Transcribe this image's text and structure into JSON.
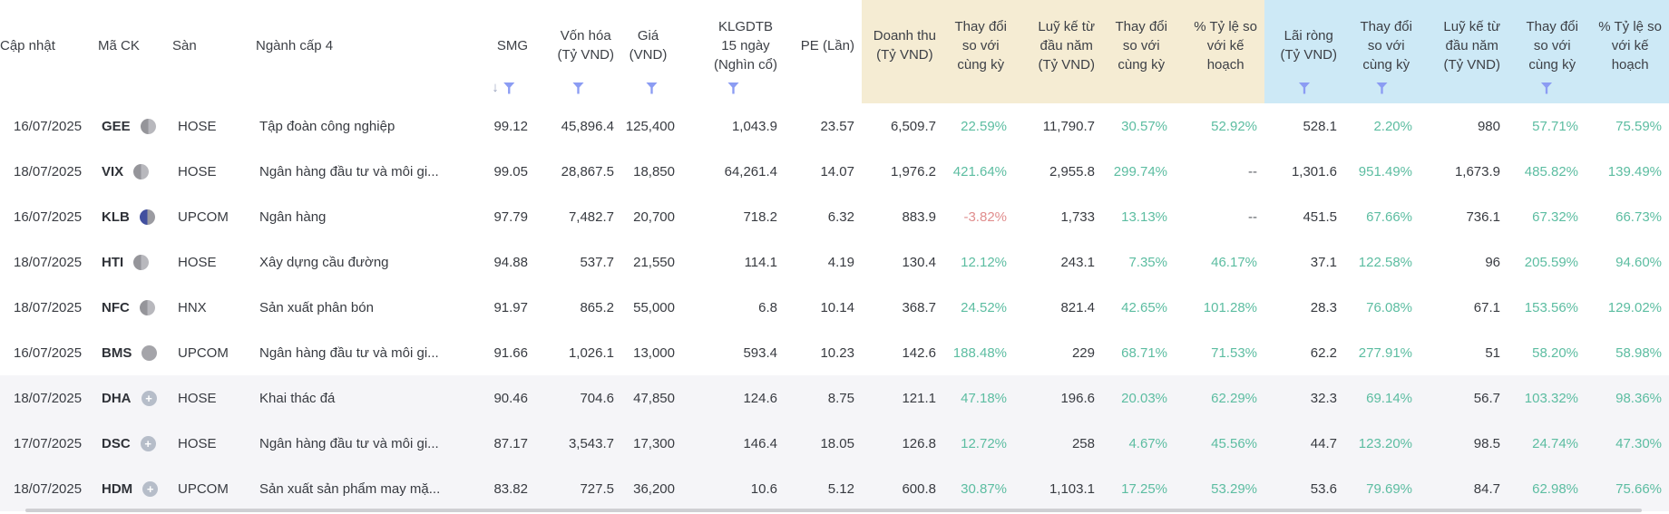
{
  "table": {
    "columns": [
      {
        "key": "cap-nhat",
        "label": "Cập nhật",
        "group": "none",
        "align": "left",
        "sort": false,
        "filter": false,
        "type": "text"
      },
      {
        "key": "ma-ck",
        "label": "Mã CK",
        "group": "none",
        "align": "left",
        "sort": false,
        "filter": false,
        "type": "code"
      },
      {
        "key": "san",
        "label": "Sàn",
        "group": "none",
        "align": "left",
        "sort": false,
        "filter": false,
        "type": "text"
      },
      {
        "key": "nganh-cap-4",
        "label": "Ngành cấp 4",
        "group": "none",
        "align": "left",
        "sort": false,
        "filter": false,
        "type": "text"
      },
      {
        "key": "smg",
        "label": "SMG",
        "group": "none",
        "align": "right",
        "sort": true,
        "filter": true,
        "type": "num"
      },
      {
        "key": "von-hoa",
        "label": "Vốn hóa\n(Tỷ VND)",
        "group": "none",
        "align": "right",
        "sort": false,
        "filter": true,
        "type": "num"
      },
      {
        "key": "gia",
        "label": "Giá (VND)",
        "group": "none",
        "align": "right",
        "sort": false,
        "filter": true,
        "type": "num"
      },
      {
        "key": "klgdtb-15-ngay",
        "label": "KLGDTB\n15 ngày\n(Nghìn cổ)",
        "group": "none",
        "align": "right",
        "sort": false,
        "filter": true,
        "type": "num"
      },
      {
        "key": "pe",
        "label": "PE (Lần)",
        "group": "none",
        "align": "right",
        "sort": false,
        "filter": false,
        "type": "num"
      },
      {
        "key": "doanh-thu",
        "label": "Doanh thu\n(Tỷ VND)",
        "group": "revenue",
        "align": "right",
        "sort": false,
        "filter": false,
        "type": "num"
      },
      {
        "key": "doanh-thu-thay-doi",
        "label": "Thay đổi\nso với\ncùng kỳ",
        "group": "revenue",
        "align": "right",
        "sort": false,
        "filter": false,
        "type": "pct"
      },
      {
        "key": "doanh-thu-luy-ke",
        "label": "Luỹ kế từ\nđầu năm\n(Tỷ VND)",
        "group": "revenue",
        "align": "right",
        "sort": false,
        "filter": false,
        "type": "num"
      },
      {
        "key": "luy-ke-thay-doi",
        "label": "Thay đổi\nso với\ncùng kỳ",
        "group": "revenue",
        "align": "right",
        "sort": false,
        "filter": false,
        "type": "pct"
      },
      {
        "key": "ty-le-ke-hoach",
        "label": "% Tỷ lệ so\nvới kế\nhoạch",
        "group": "revenue",
        "align": "right",
        "sort": false,
        "filter": false,
        "type": "pct"
      },
      {
        "key": "lai-rong",
        "label": "Lãi ròng\n(Tỷ VND)",
        "group": "profit",
        "align": "right",
        "sort": false,
        "filter": true,
        "type": "num"
      },
      {
        "key": "lai-rong-thay-doi",
        "label": "Thay đổi\nso với\ncùng kỳ",
        "group": "profit",
        "align": "right",
        "sort": false,
        "filter": true,
        "type": "pct"
      },
      {
        "key": "lai-rong-luy-ke",
        "label": "Luỹ kế từ\nđầu năm\n(Tỷ VND)",
        "group": "profit",
        "align": "right",
        "sort": false,
        "filter": false,
        "type": "num"
      },
      {
        "key": "lai-rong-luy-ke-thay-doi",
        "label": "Thay đổi\nso với\ncùng kỳ",
        "group": "profit",
        "align": "right",
        "sort": false,
        "filter": true,
        "type": "pct"
      },
      {
        "key": "lai-rong-ty-le-ke-hoach",
        "label": "% Tỷ lệ so\nvới kế\nhoạch",
        "group": "profit",
        "align": "right",
        "sort": false,
        "filter": false,
        "type": "pct"
      }
    ],
    "rows": [
      {
        "icon": "half-gray",
        "highlight": false,
        "cells": [
          "16/07/2025",
          "GEE",
          "HOSE",
          "Tập đoàn công nghiệp",
          "99.12",
          "45,896.4",
          "125,400",
          "1,043.9",
          "23.57",
          "6,509.7",
          "22.59%",
          "11,790.7",
          "30.57%",
          "52.92%",
          "528.1",
          "2.20%",
          "980",
          "57.71%",
          "75.59%"
        ]
      },
      {
        "icon": "half-gray",
        "highlight": false,
        "cells": [
          "18/07/2025",
          "VIX",
          "HOSE",
          "Ngân hàng đầu tư và môi gi...",
          "99.05",
          "28,867.5",
          "18,850",
          "64,261.4",
          "14.07",
          "1,976.2",
          "421.64%",
          "2,955.8",
          "299.74%",
          "--",
          "1,301.6",
          "951.49%",
          "1,673.9",
          "485.82%",
          "139.49%"
        ]
      },
      {
        "icon": "half-blue",
        "highlight": false,
        "cells": [
          "16/07/2025",
          "KLB",
          "UPCOM",
          "Ngân hàng",
          "97.79",
          "7,482.7",
          "20,700",
          "718.2",
          "6.32",
          "883.9",
          "-3.82%",
          "1,733",
          "13.13%",
          "--",
          "451.5",
          "67.66%",
          "736.1",
          "67.32%",
          "66.73%"
        ]
      },
      {
        "icon": "half-gray",
        "highlight": false,
        "cells": [
          "18/07/2025",
          "HTI",
          "HOSE",
          "Xây dựng cầu đường",
          "94.88",
          "537.7",
          "21,550",
          "114.1",
          "4.19",
          "130.4",
          "12.12%",
          "243.1",
          "7.35%",
          "46.17%",
          "37.1",
          "122.58%",
          "96",
          "205.59%",
          "94.60%"
        ]
      },
      {
        "icon": "half-gray",
        "highlight": false,
        "cells": [
          "18/07/2025",
          "NFC",
          "HNX",
          "Sản xuất phân bón",
          "91.97",
          "865.2",
          "55,000",
          "6.8",
          "10.14",
          "368.7",
          "24.52%",
          "821.4",
          "42.65%",
          "101.28%",
          "28.3",
          "76.08%",
          "67.1",
          "153.56%",
          "129.02%"
        ]
      },
      {
        "icon": "full-gray",
        "highlight": false,
        "cells": [
          "16/07/2025",
          "BMS",
          "UPCOM",
          "Ngân hàng đầu tư và môi gi...",
          "91.66",
          "1,026.1",
          "13,000",
          "593.4",
          "10.23",
          "142.6",
          "188.48%",
          "229",
          "68.71%",
          "71.53%",
          "62.2",
          "277.91%",
          "51",
          "58.20%",
          "58.98%"
        ]
      },
      {
        "icon": "plus-circle",
        "highlight": true,
        "cells": [
          "18/07/2025",
          "DHA",
          "HOSE",
          "Khai thác đá",
          "90.46",
          "704.6",
          "47,850",
          "124.6",
          "8.75",
          "121.1",
          "47.18%",
          "196.6",
          "20.03%",
          "62.29%",
          "32.3",
          "69.14%",
          "56.7",
          "103.32%",
          "98.36%"
        ]
      },
      {
        "icon": "plus-circle",
        "highlight": true,
        "cells": [
          "17/07/2025",
          "DSC",
          "HOSE",
          "Ngân hàng đầu tư và môi gi...",
          "87.17",
          "3,543.7",
          "17,300",
          "146.4",
          "18.05",
          "126.8",
          "12.72%",
          "258",
          "4.67%",
          "45.56%",
          "44.7",
          "123.20%",
          "98.5",
          "24.74%",
          "47.30%"
        ]
      },
      {
        "icon": "plus-circle",
        "highlight": true,
        "cells": [
          "18/07/2025",
          "HDM",
          "UPCOM",
          "Sản xuất sản phẩm may mặ...",
          "83.82",
          "727.5",
          "36,200",
          "10.6",
          "5.12",
          "600.8",
          "30.87%",
          "1,103.1",
          "17.25%",
          "53.29%",
          "53.6",
          "79.69%",
          "84.7",
          "62.98%",
          "75.66%"
        ]
      }
    ],
    "plus_icon_glyph": "+",
    "sort_icon_glyph": "↓"
  },
  "colors": {
    "revenue_group_bg": "#f5ecd3",
    "profit_group_bg": "#cde9f6",
    "positive_value": "#5cbda1",
    "negative_value": "#e08d8d",
    "muted_value": "#5c6066",
    "filter_icon": "#8b9cf3",
    "sort_icon": "#9ba4bf",
    "row_highlight_bg": "#f5f5f8"
  }
}
